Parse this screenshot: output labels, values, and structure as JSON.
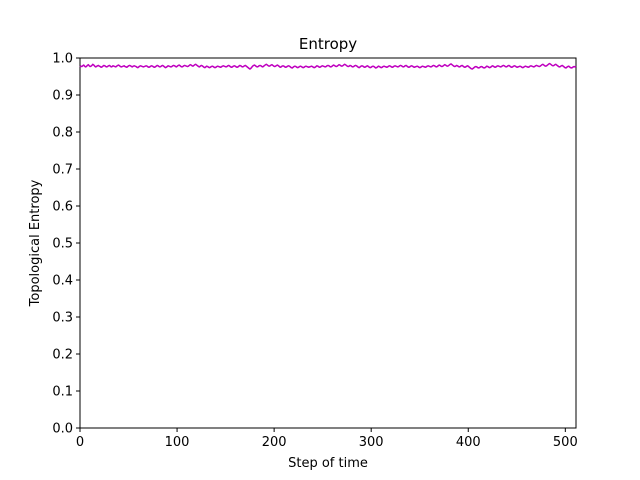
{
  "chart_data": {
    "type": "line",
    "title": "Entropy",
    "xlabel": "Step of time",
    "ylabel": "Topological Entropy",
    "xlim": [
      0,
      511
    ],
    "ylim": [
      0.0,
      1.0
    ],
    "x_ticks": [
      "0",
      "100",
      "200",
      "300",
      "400",
      "500"
    ],
    "y_ticks": [
      "0.0",
      "0.1",
      "0.2",
      "0.3",
      "0.4",
      "0.5",
      "0.6",
      "0.7",
      "0.8",
      "0.9",
      "1.0"
    ],
    "grid": false,
    "series": [
      {
        "color": "#bf00bf",
        "x_start": 0,
        "x_step": 1,
        "values": [
          0.976,
          0.978,
          0.977,
          0.979,
          0.981,
          0.978,
          0.976,
          0.977,
          0.98,
          0.982,
          0.979,
          0.977,
          0.978,
          0.98,
          0.983,
          0.981,
          0.978,
          0.976,
          0.977,
          0.979,
          0.98,
          0.978,
          0.977,
          0.975,
          0.976,
          0.978,
          0.98,
          0.979,
          0.977,
          0.976,
          0.977,
          0.979,
          0.98,
          0.978,
          0.976,
          0.977,
          0.979,
          0.978,
          0.977,
          0.976,
          0.978,
          0.98,
          0.981,
          0.979,
          0.977,
          0.976,
          0.977,
          0.978,
          0.979,
          0.977,
          0.976,
          0.975,
          0.977,
          0.979,
          0.98,
          0.979,
          0.977,
          0.976,
          0.978,
          0.979,
          0.978,
          0.977,
          0.975,
          0.974,
          0.976,
          0.978,
          0.979,
          0.978,
          0.977,
          0.976,
          0.977,
          0.978,
          0.979,
          0.978,
          0.976,
          0.975,
          0.976,
          0.978,
          0.979,
          0.978,
          0.976,
          0.975,
          0.976,
          0.978,
          0.98,
          0.979,
          0.977,
          0.976,
          0.977,
          0.979,
          0.98,
          0.978,
          0.976,
          0.974,
          0.975,
          0.977,
          0.979,
          0.978,
          0.977,
          0.976,
          0.977,
          0.979,
          0.98,
          0.979,
          0.977,
          0.976,
          0.978,
          0.98,
          0.981,
          0.979,
          0.977,
          0.976,
          0.977,
          0.979,
          0.98,
          0.979,
          0.978,
          0.977,
          0.978,
          0.98,
          0.982,
          0.981,
          0.979,
          0.978,
          0.98,
          0.982,
          0.983,
          0.981,
          0.979,
          0.977,
          0.976,
          0.978,
          0.98,
          0.979,
          0.977,
          0.975,
          0.974,
          0.976,
          0.978,
          0.977,
          0.975,
          0.974,
          0.975,
          0.977,
          0.978,
          0.977,
          0.975,
          0.974,
          0.975,
          0.977,
          0.978,
          0.977,
          0.976,
          0.975,
          0.976,
          0.978,
          0.979,
          0.978,
          0.977,
          0.976,
          0.977,
          0.979,
          0.98,
          0.978,
          0.976,
          0.975,
          0.976,
          0.978,
          0.979,
          0.978,
          0.976,
          0.975,
          0.976,
          0.978,
          0.98,
          0.979,
          0.977,
          0.976,
          0.977,
          0.979,
          0.98,
          0.978,
          0.976,
          0.974,
          0.972,
          0.97,
          0.972,
          0.975,
          0.978,
          0.98,
          0.981,
          0.979,
          0.977,
          0.976,
          0.977,
          0.979,
          0.98,
          0.979,
          0.977,
          0.976,
          0.978,
          0.98,
          0.982,
          0.983,
          0.981,
          0.979,
          0.978,
          0.979,
          0.981,
          0.982,
          0.98,
          0.978,
          0.977,
          0.978,
          0.98,
          0.981,
          0.979,
          0.977,
          0.975,
          0.976,
          0.978,
          0.979,
          0.978,
          0.976,
          0.975,
          0.976,
          0.978,
          0.979,
          0.978,
          0.976,
          0.974,
          0.973,
          0.975,
          0.977,
          0.978,
          0.977,
          0.975,
          0.974,
          0.975,
          0.977,
          0.978,
          0.977,
          0.975,
          0.974,
          0.975,
          0.977,
          0.978,
          0.977,
          0.976,
          0.975,
          0.976,
          0.977,
          0.978,
          0.977,
          0.975,
          0.974,
          0.975,
          0.977,
          0.979,
          0.978,
          0.976,
          0.975,
          0.976,
          0.978,
          0.979,
          0.978,
          0.977,
          0.976,
          0.977,
          0.979,
          0.98,
          0.979,
          0.977,
          0.976,
          0.977,
          0.979,
          0.981,
          0.98,
          0.978,
          0.977,
          0.978,
          0.98,
          0.982,
          0.981,
          0.979,
          0.978,
          0.979,
          0.981,
          0.983,
          0.982,
          0.98,
          0.978,
          0.977,
          0.978,
          0.98,
          0.979,
          0.977,
          0.976,
          0.977,
          0.979,
          0.98,
          0.979,
          0.977,
          0.975,
          0.974,
          0.976,
          0.978,
          0.979,
          0.978,
          0.976,
          0.975,
          0.976,
          0.978,
          0.979,
          0.977,
          0.975,
          0.974,
          0.975,
          0.977,
          0.978,
          0.977,
          0.975,
          0.973,
          0.974,
          0.976,
          0.978,
          0.977,
          0.975,
          0.974,
          0.975,
          0.977,
          0.978,
          0.977,
          0.976,
          0.975,
          0.976,
          0.978,
          0.979,
          0.978,
          0.976,
          0.975,
          0.976,
          0.978,
          0.979,
          0.978,
          0.977,
          0.976,
          0.977,
          0.979,
          0.98,
          0.979,
          0.977,
          0.976,
          0.977,
          0.979,
          0.98,
          0.978,
          0.976,
          0.975,
          0.976,
          0.978,
          0.979,
          0.978,
          0.976,
          0.975,
          0.976,
          0.977,
          0.978,
          0.977,
          0.975,
          0.974,
          0.975,
          0.977,
          0.978,
          0.977,
          0.976,
          0.975,
          0.976,
          0.978,
          0.979,
          0.978,
          0.977,
          0.976,
          0.977,
          0.979,
          0.98,
          0.979,
          0.977,
          0.976,
          0.977,
          0.979,
          0.981,
          0.98,
          0.978,
          0.977,
          0.978,
          0.98,
          0.982,
          0.981,
          0.979,
          0.978,
          0.979,
          0.981,
          0.983,
          0.984,
          0.982,
          0.98,
          0.978,
          0.977,
          0.978,
          0.98,
          0.979,
          0.977,
          0.976,
          0.977,
          0.979,
          0.98,
          0.978,
          0.976,
          0.975,
          0.976,
          0.978,
          0.979,
          0.977,
          0.975,
          0.973,
          0.971,
          0.97,
          0.972,
          0.974,
          0.976,
          0.977,
          0.976,
          0.974,
          0.973,
          0.974,
          0.976,
          0.977,
          0.976,
          0.974,
          0.973,
          0.974,
          0.976,
          0.978,
          0.977,
          0.975,
          0.974,
          0.975,
          0.977,
          0.979,
          0.978,
          0.976,
          0.975,
          0.976,
          0.978,
          0.979,
          0.978,
          0.977,
          0.976,
          0.977,
          0.979,
          0.98,
          0.979,
          0.977,
          0.976,
          0.977,
          0.979,
          0.98,
          0.978,
          0.976,
          0.975,
          0.976,
          0.978,
          0.979,
          0.978,
          0.976,
          0.975,
          0.976,
          0.977,
          0.978,
          0.977,
          0.975,
          0.974,
          0.975,
          0.977,
          0.978,
          0.977,
          0.976,
          0.975,
          0.976,
          0.978,
          0.979,
          0.978,
          0.977,
          0.976,
          0.977,
          0.979,
          0.98,
          0.979,
          0.978,
          0.977,
          0.978,
          0.98,
          0.982,
          0.983,
          0.981,
          0.979,
          0.978,
          0.979,
          0.981,
          0.983,
          0.985,
          0.984,
          0.982,
          0.98,
          0.979,
          0.98,
          0.982,
          0.983,
          0.981,
          0.979,
          0.977,
          0.976,
          0.977,
          0.979,
          0.98,
          0.978,
          0.976,
          0.974,
          0.973,
          0.975,
          0.977,
          0.978,
          0.976,
          0.974,
          0.973,
          0.974,
          0.976,
          0.977,
          0.976,
          0.975
        ]
      }
    ]
  }
}
